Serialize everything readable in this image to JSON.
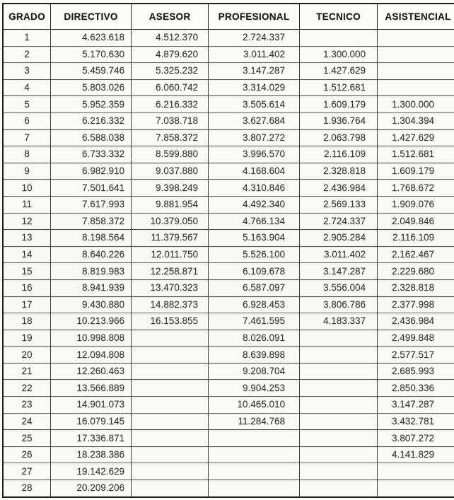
{
  "colors": {
    "paper": "#fafaf7",
    "outer_border": "#1d1d1d",
    "inner_border": "#3e3e3e",
    "header_text": "#1c1c1c",
    "cell_text": "#3d3d3d"
  },
  "table": {
    "columns": [
      "GRADO",
      "DIRECTIVO",
      "ASESOR",
      "PROFESIONAL",
      "TECNICO",
      "ASISTENCIAL"
    ],
    "rows": [
      [
        "1",
        "4.623.618",
        "4.512.370",
        "2.724.337",
        "",
        ""
      ],
      [
        "2",
        "5.170.630",
        "4.879.620",
        "3.011.402",
        "1.300.000",
        ""
      ],
      [
        "3",
        "5.459.746",
        "5.325.232",
        "3.147.287",
        "1.427.629",
        ""
      ],
      [
        "4",
        "5.803.026",
        "6.060.742",
        "3.314.029",
        "1.512.681",
        ""
      ],
      [
        "5",
        "5.952.359",
        "6.216.332",
        "3.505.614",
        "1.609.179",
        "1.300.000"
      ],
      [
        "6",
        "6.216.332",
        "7.038.718",
        "3.627.684",
        "1.936.764",
        "1.304.394"
      ],
      [
        "7",
        "6.588.038",
        "7.858.372",
        "3.807.272",
        "2.063.798",
        "1.427.629"
      ],
      [
        "8",
        "6.733.332",
        "8.599.880",
        "3.996.570",
        "2.116.109",
        "1.512.681"
      ],
      [
        "9",
        "6.982.910",
        "9.037.880",
        "4.168.604",
        "2.328.818",
        "1.609.179"
      ],
      [
        "10",
        "7.501.641",
        "9.398.249",
        "4.310.846",
        "2.436.984",
        "1.768.672"
      ],
      [
        "11",
        "7.617.993",
        "9.881.954",
        "4.492.340",
        "2.569.133",
        "1.909.076"
      ],
      [
        "12",
        "7.858.372",
        "10.379.050",
        "4.766.134",
        "2.724.337",
        "2.049.846"
      ],
      [
        "13",
        "8.198.564",
        "11.379.567",
        "5.163.904",
        "2.905.284",
        "2.116.109"
      ],
      [
        "14",
        "8.640.226",
        "12.011.750",
        "5.526.100",
        "3.011.402",
        "2.162.467"
      ],
      [
        "15",
        "8.819.983",
        "12.258.871",
        "6.109.678",
        "3.147.287",
        "2.229.680"
      ],
      [
        "16",
        "8.941.939",
        "13.470.323",
        "6.587.097",
        "3.556.004",
        "2.328.818"
      ],
      [
        "17",
        "9.430.880",
        "14.882.373",
        "6.928.453",
        "3.806.786",
        "2.377.998"
      ],
      [
        "18",
        "10.213.966",
        "16.153.855",
        "7.461.595",
        "4.183.337",
        "2.436.984"
      ],
      [
        "19",
        "10.998.808",
        "",
        "8.026.091",
        "",
        "2.499.848"
      ],
      [
        "20",
        "12.094.808",
        "",
        "8.639.898",
        "",
        "2.577.517"
      ],
      [
        "21",
        "12.260.463",
        "",
        "9.208.704",
        "",
        "2.685.993"
      ],
      [
        "22",
        "13.566.889",
        "",
        "9.904.253",
        "",
        "2.850.336"
      ],
      [
        "23",
        "14.901.073",
        "",
        "10.465.010",
        "",
        "3.147.287"
      ],
      [
        "24",
        "16.079.145",
        "",
        "11.284.768",
        "",
        "3.432.781"
      ],
      [
        "25",
        "17.336.871",
        "",
        "",
        "",
        "3.807.272"
      ],
      [
        "26",
        "18.238.386",
        "",
        "",
        "",
        "4.141.829"
      ],
      [
        "27",
        "19.142.629",
        "",
        "",
        "",
        ""
      ],
      [
        "28",
        "20.209.206",
        "",
        "",
        "",
        ""
      ]
    ]
  }
}
